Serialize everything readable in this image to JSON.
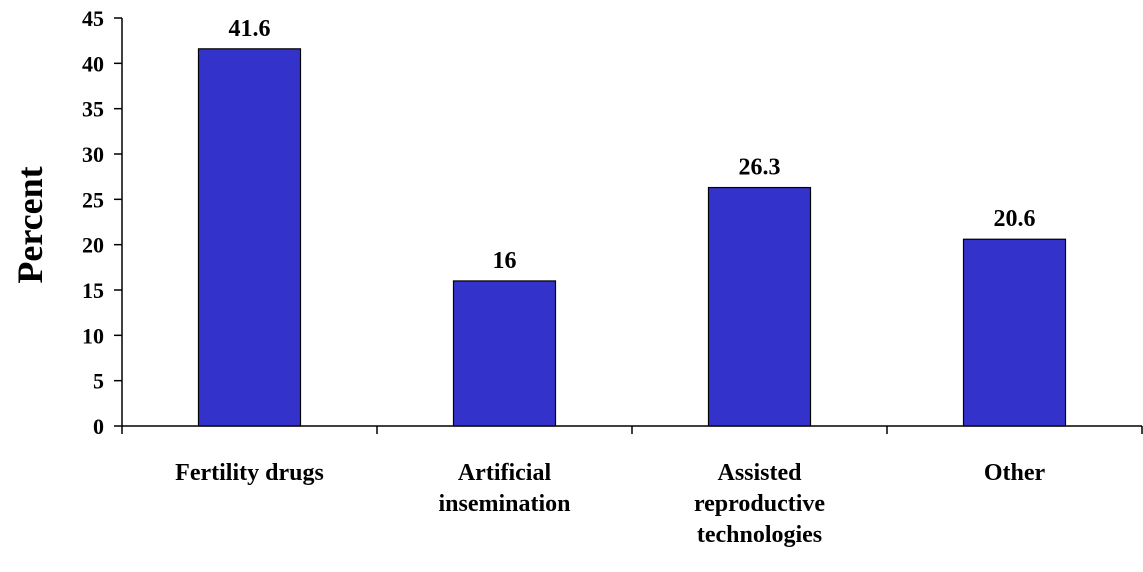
{
  "chart_data": {
    "type": "bar",
    "categories": [
      [
        "Fertility drugs"
      ],
      [
        "Artificial",
        "insemination"
      ],
      [
        "Assisted",
        "reproductive",
        "technologies"
      ],
      [
        "Other"
      ]
    ],
    "values": [
      41.6,
      16,
      26.3,
      20.6
    ],
    "value_labels": [
      "41.6",
      "16",
      "26.3",
      "20.6"
    ],
    "ylabel": "Percent",
    "xlabel": "",
    "ylim": [
      0,
      45
    ],
    "yticks": [
      0,
      5,
      10,
      15,
      20,
      25,
      30,
      35,
      40,
      45
    ],
    "grid": false,
    "bar_color": "#3333CC"
  }
}
